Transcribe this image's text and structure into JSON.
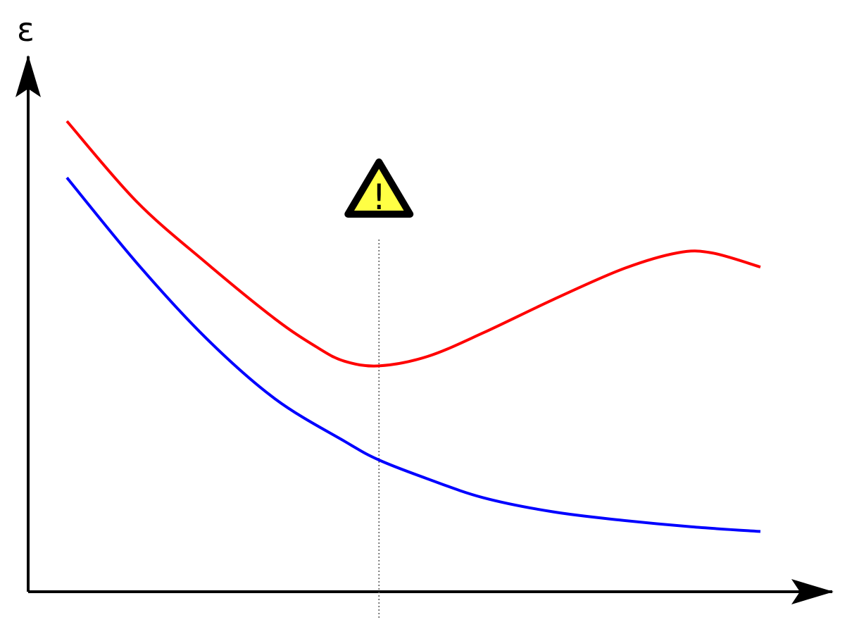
{
  "chart_data": {
    "type": "line",
    "ylabel": "ε",
    "xlabel": "",
    "title": "",
    "xlim": [
      0,
      100
    ],
    "ylim": [
      0,
      100
    ],
    "grid": false,
    "legend": "none",
    "series": [
      {
        "color": "#ff0000",
        "x": [
          0,
          10,
          20,
          30,
          36,
          40,
          45,
          52,
          60,
          70,
          80,
          88,
          93,
          100
        ],
        "y": [
          100,
          83,
          70,
          58,
          52,
          49,
          48,
          50,
          55,
          62,
          68.5,
          72,
          72,
          69
        ]
      },
      {
        "color": "#0000ff",
        "x": [
          0,
          10,
          20,
          30,
          40,
          45,
          52,
          60,
          70,
          80,
          90,
          100
        ],
        "y": [
          88,
          70,
          54,
          41,
          32,
          28,
          24,
          20,
          17,
          15.2,
          13.8,
          12.8
        ]
      }
    ],
    "marker": {
      "x": 45,
      "style": "dotted",
      "icon": "warning-triangle-icon",
      "icon_fill": "#ffff44",
      "icon_glyph": "!"
    }
  }
}
